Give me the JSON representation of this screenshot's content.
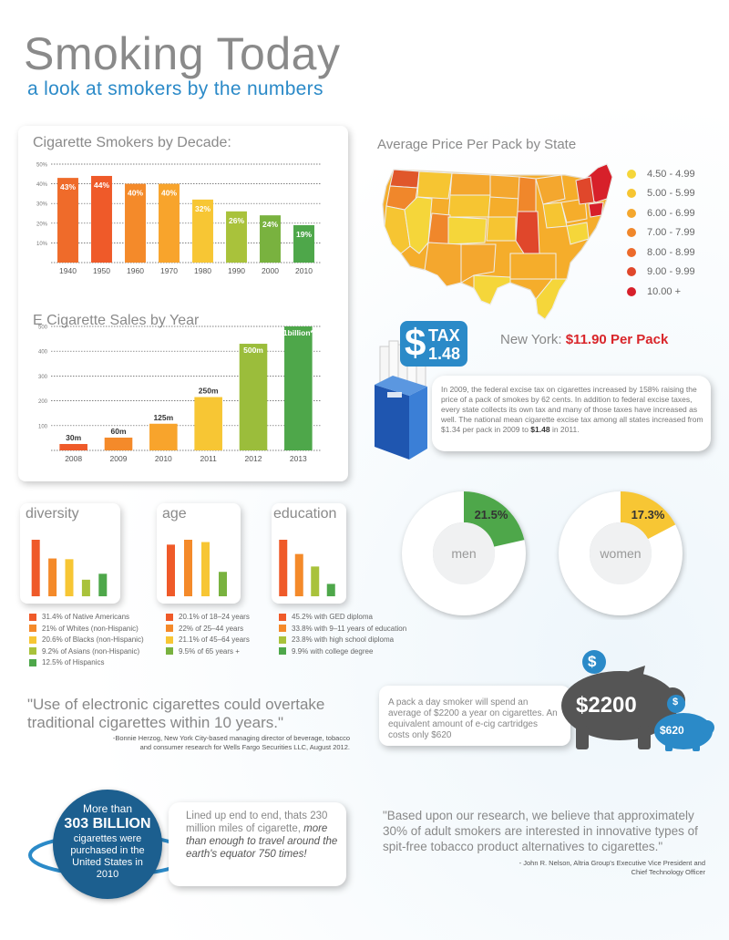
{
  "header": {
    "title": "Smoking Today",
    "subtitle": "a look at smokers by the numbers"
  },
  "colors": {
    "accent": "#2b8ac8",
    "red": "#d9252a",
    "gray": "#888888"
  },
  "chart_data": [
    {
      "type": "bar",
      "title": "Cigarette Smokers by Decade:",
      "categories": [
        "1940",
        "1950",
        "1960",
        "1970",
        "1980",
        "1990",
        "2000",
        "2010"
      ],
      "values": [
        43,
        44,
        40,
        40,
        32,
        26,
        24,
        19
      ],
      "data_labels": [
        "43%",
        "44%",
        "40%",
        "40%",
        "32%",
        "26%",
        "24%",
        "19%"
      ],
      "colors": [
        "#ef6b2a",
        "#ef5a29",
        "#f48a2a",
        "#f8a42c",
        "#f7c634",
        "#a9c23b",
        "#79b23f",
        "#4ea74a"
      ],
      "yticks": [
        "50%",
        "40%",
        "30%",
        "20%",
        "10%"
      ],
      "ylim": [
        0,
        50
      ],
      "grid": true
    },
    {
      "type": "bar",
      "title": "E Cigarette Sales by Year",
      "categories": [
        "2008",
        "2009",
        "2010",
        "2011",
        "2012",
        "2013"
      ],
      "values": [
        30,
        60,
        125,
        250,
        500,
        1000
      ],
      "data_labels": [
        "30m",
        "60m",
        "125m",
        "250m",
        "500m",
        "1billion*"
      ],
      "colors": [
        "#ef5a29",
        "#f48a2a",
        "#f8a42c",
        "#f7c634",
        "#9bbd3b",
        "#4ea74a"
      ],
      "yticks": [
        "500",
        "400",
        "300",
        "200",
        "100"
      ],
      "grid": true
    },
    {
      "type": "bar",
      "title": "diversity",
      "values": [
        31.4,
        21,
        20.6,
        9.2,
        12.5
      ],
      "colors": [
        "#ef5a29",
        "#f48a2a",
        "#f7c634",
        "#a9c23b",
        "#4ea74a"
      ],
      "legend": [
        "31.4% of Native Americans",
        "21% of Whites (non-Hispanic)",
        "20.6% of Blacks (non-Hispanic)",
        "9.2% of Asians (non-Hispanic)",
        "12.5% of Hispanics"
      ]
    },
    {
      "type": "bar",
      "title": "age",
      "values": [
        20.1,
        22,
        21.1,
        9.5
      ],
      "colors": [
        "#ef5a29",
        "#f48a2a",
        "#f7c634",
        "#79b23f"
      ],
      "legend": [
        "20.1% of 18–24 years",
        "22% of 25–44 years",
        "21.1% of 45–64 years",
        "9.5% of 65 years +"
      ]
    },
    {
      "type": "bar",
      "title": "education",
      "values": [
        45.2,
        33.8,
        23.8,
        9.9
      ],
      "colors": [
        "#ef5a29",
        "#f48a2a",
        "#a9c23b",
        "#4ea74a"
      ],
      "legend": [
        "45.2% with GED diploma",
        "33.8% with 9–11 years of education",
        "23.8% with high school diploma",
        "9.9% with college degree"
      ]
    },
    {
      "type": "pie",
      "title": "men",
      "values": [
        21.5,
        78.5
      ],
      "label": "21.5%",
      "color": "#4ea74a"
    },
    {
      "type": "pie",
      "title": "women",
      "values": [
        17.3,
        82.7
      ],
      "label": "17.3%",
      "color": "#f7c634"
    }
  ],
  "map": {
    "title": "Average Price Per Pack by State",
    "legend": [
      {
        "label": "4.50 - 4.99",
        "color": "#f5d63a"
      },
      {
        "label": "5.00 - 5.99",
        "color": "#f6c532"
      },
      {
        "label": "6.00 - 6.99",
        "color": "#f4a72e"
      },
      {
        "label": "7.00 - 7.99",
        "color": "#f0872b"
      },
      {
        "label": "8.00 - 8.99",
        "color": "#ec6a2b"
      },
      {
        "label": "9.00 - 9.99",
        "color": "#e0472b"
      },
      {
        "label": "10.00 +",
        "color": "#d7202a"
      }
    ]
  },
  "tax": {
    "badge_word": "TAX",
    "badge_amount": "1.48",
    "badge_dollar": "$",
    "ny_label": "New York:",
    "ny_value": "$11.90 Per Pack",
    "text_1": "In 2009, the federal excise tax on cigarettes increased by 158% raising the price of a pack of smokes by 62 cents. In addition to federal excise taxes, every state collects its own tax and many of those taxes have increased as well. The national mean cigarette excise tax among all states increased from $1.34 per pack in 2009 to ",
    "text_bold": "$1.48",
    "text_2": " in 2011."
  },
  "savings": {
    "text": "A pack a day smoker will spend an average of $2200 a year on cigarettes. An equivalent amount of e-cig cartridges costs only $620",
    "big_amount": "$2200",
    "small_amount": "$620",
    "coin": "$"
  },
  "quote1": {
    "text": "\"Use of electronic cigarettes could overtake traditional cigarettes within 10 years.\"",
    "attribution": "-Bonnie Herzog, New York City-based managing director of beverage, tobacco and consumer research for Wells Fargo Securities LLC, August 2012."
  },
  "billion": {
    "line1": "More than",
    "big": "303 BILLION",
    "line2": "cigarettes were purchased in the United States in 2010",
    "lined_1": "Lined up end to end, thats 230 million miles of cigarette, ",
    "lined_em": "more than enough to travel around the earth's equator 750 times!"
  },
  "quote2": {
    "text": "\"Based upon our research, we believe that approximately 30% of adult smokers are interested in innovative types of spit-free tobacco product alternatives to cigarettes.\"",
    "attribution": "- John R. Nelson, Altria Group's Executive Vice President and Chief Technology Officer"
  }
}
